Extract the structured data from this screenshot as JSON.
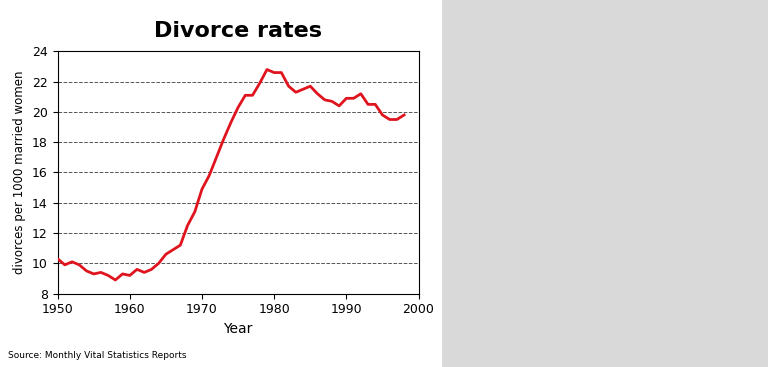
{
  "chart_data": {
    "type": "line",
    "title": "Divorce rates",
    "x_label": "Year",
    "y_label": "divorces per 1000 married women",
    "source": "Source: Monthly Vital Statistics Reports",
    "x": [
      1950,
      1951,
      1952,
      1953,
      1954,
      1955,
      1956,
      1957,
      1958,
      1959,
      1960,
      1961,
      1962,
      1963,
      1964,
      1965,
      1966,
      1967,
      1968,
      1969,
      1970,
      1971,
      1972,
      1973,
      1974,
      1975,
      1976,
      1977,
      1978,
      1979,
      1980,
      1981,
      1982,
      1983,
      1984,
      1985,
      1986,
      1987,
      1988,
      1989,
      1990,
      1991,
      1992,
      1993,
      1994,
      1995,
      1996,
      1997,
      1998
    ],
    "values": [
      10.3,
      9.9,
      10.1,
      9.9,
      9.5,
      9.3,
      9.4,
      9.2,
      8.9,
      9.3,
      9.2,
      9.6,
      9.4,
      9.6,
      10.0,
      10.6,
      10.9,
      11.2,
      12.5,
      13.4,
      14.9,
      15.8,
      17.0,
      18.2,
      19.3,
      20.3,
      21.1,
      21.1,
      21.9,
      22.8,
      22.6,
      22.6,
      21.7,
      21.3,
      21.5,
      21.7,
      21.2,
      20.8,
      20.7,
      20.4,
      20.9,
      20.9,
      21.2,
      20.5,
      20.5,
      19.8,
      19.5,
      19.5,
      19.8
    ],
    "color": "#e0141e",
    "xlim": [
      1950,
      2000
    ],
    "xticks": [
      1950,
      1960,
      1970,
      1980,
      1990,
      2000
    ],
    "ylim": [
      8,
      24
    ],
    "yticks": [
      8,
      10,
      12,
      14,
      16,
      18,
      20,
      22,
      24
    ],
    "grid": true
  }
}
